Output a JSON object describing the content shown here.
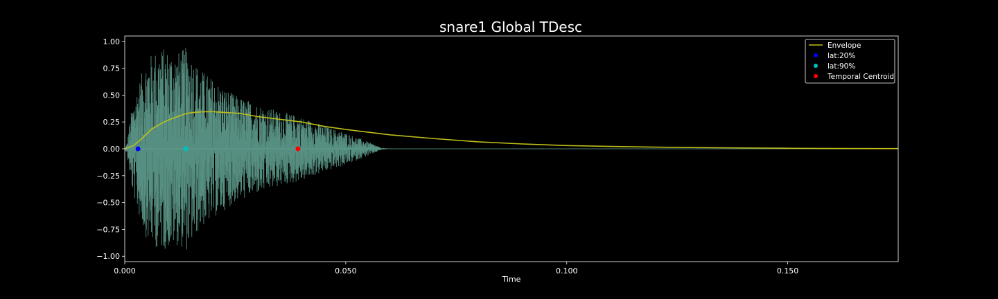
{
  "chart_data": {
    "type": "line",
    "title": "snare1 Global TDesc",
    "xlabel": "Time",
    "ylabel": "",
    "xlim": [
      0.0,
      0.175
    ],
    "ylim": [
      -1.05,
      1.05
    ],
    "x_ticks": [
      0.0,
      0.05,
      0.1,
      0.15
    ],
    "x_tick_labels": [
      "0.000",
      "0.050",
      "0.100",
      "0.150"
    ],
    "y_ticks": [
      1.0,
      0.75,
      0.5,
      0.25,
      0.0,
      -0.25,
      -0.5,
      -0.75,
      -1.0
    ],
    "y_tick_labels": [
      "1.00",
      "0.75",
      "0.50",
      "0.25",
      "0.00",
      "−0.25",
      "−0.50",
      "−0.75",
      "−1.00"
    ],
    "grid": false,
    "legend_position": "top-right",
    "colors": {
      "background": "#000000",
      "waveform": "#5f9e8f",
      "envelope": "#bfbf1a",
      "lat20": "#0000ff",
      "lat90": "#00bfbf",
      "centroid": "#ff0000",
      "axes": "#ffffff"
    },
    "waveform": {
      "note": "",
      "x_start": 0.0,
      "x_end": 0.175,
      "amplitude_profile": [
        [
          0.0,
          0.0
        ],
        [
          0.0005,
          0.05
        ],
        [
          0.0015,
          0.35
        ],
        [
          0.003,
          0.6
        ],
        [
          0.005,
          0.85
        ],
        [
          0.008,
          0.95
        ],
        [
          0.012,
          0.9
        ],
        [
          0.014,
          0.95
        ],
        [
          0.017,
          0.75
        ],
        [
          0.02,
          0.65
        ],
        [
          0.025,
          0.5
        ],
        [
          0.03,
          0.42
        ],
        [
          0.035,
          0.35
        ],
        [
          0.04,
          0.3
        ],
        [
          0.045,
          0.22
        ],
        [
          0.05,
          0.15
        ],
        [
          0.053,
          0.1
        ],
        [
          0.056,
          0.05
        ],
        [
          0.058,
          0.01
        ],
        [
          0.06,
          0.0
        ],
        [
          0.175,
          0.0
        ]
      ]
    },
    "series": [
      {
        "name": "Envelope",
        "x": [
          0.0,
          0.002,
          0.004,
          0.006,
          0.008,
          0.01,
          0.012,
          0.014,
          0.016,
          0.018,
          0.02,
          0.022,
          0.024,
          0.026,
          0.03,
          0.035,
          0.04,
          0.045,
          0.05,
          0.055,
          0.06,
          0.07,
          0.08,
          0.09,
          0.1,
          0.11,
          0.12,
          0.13,
          0.14,
          0.15,
          0.16,
          0.175
        ],
        "y": [
          0.0,
          0.03,
          0.1,
          0.18,
          0.23,
          0.27,
          0.3,
          0.33,
          0.34,
          0.345,
          0.345,
          0.34,
          0.335,
          0.33,
          0.3,
          0.275,
          0.25,
          0.21,
          0.18,
          0.155,
          0.13,
          0.095,
          0.065,
          0.045,
          0.03,
          0.022,
          0.016,
          0.011,
          0.008,
          0.005,
          0.003,
          0.002
        ]
      },
      {
        "name": "lat:20%",
        "x": [
          0.003
        ],
        "y": [
          0.0
        ]
      },
      {
        "name": "lat:90%",
        "x": [
          0.0138
        ],
        "y": [
          0.0
        ]
      },
      {
        "name": "Temporal Centroid",
        "x": [
          0.0392
        ],
        "y": [
          0.0
        ]
      }
    ],
    "legend": [
      "Envelope",
      "lat:20%",
      "lat:90%",
      "Temporal Centroid"
    ]
  }
}
